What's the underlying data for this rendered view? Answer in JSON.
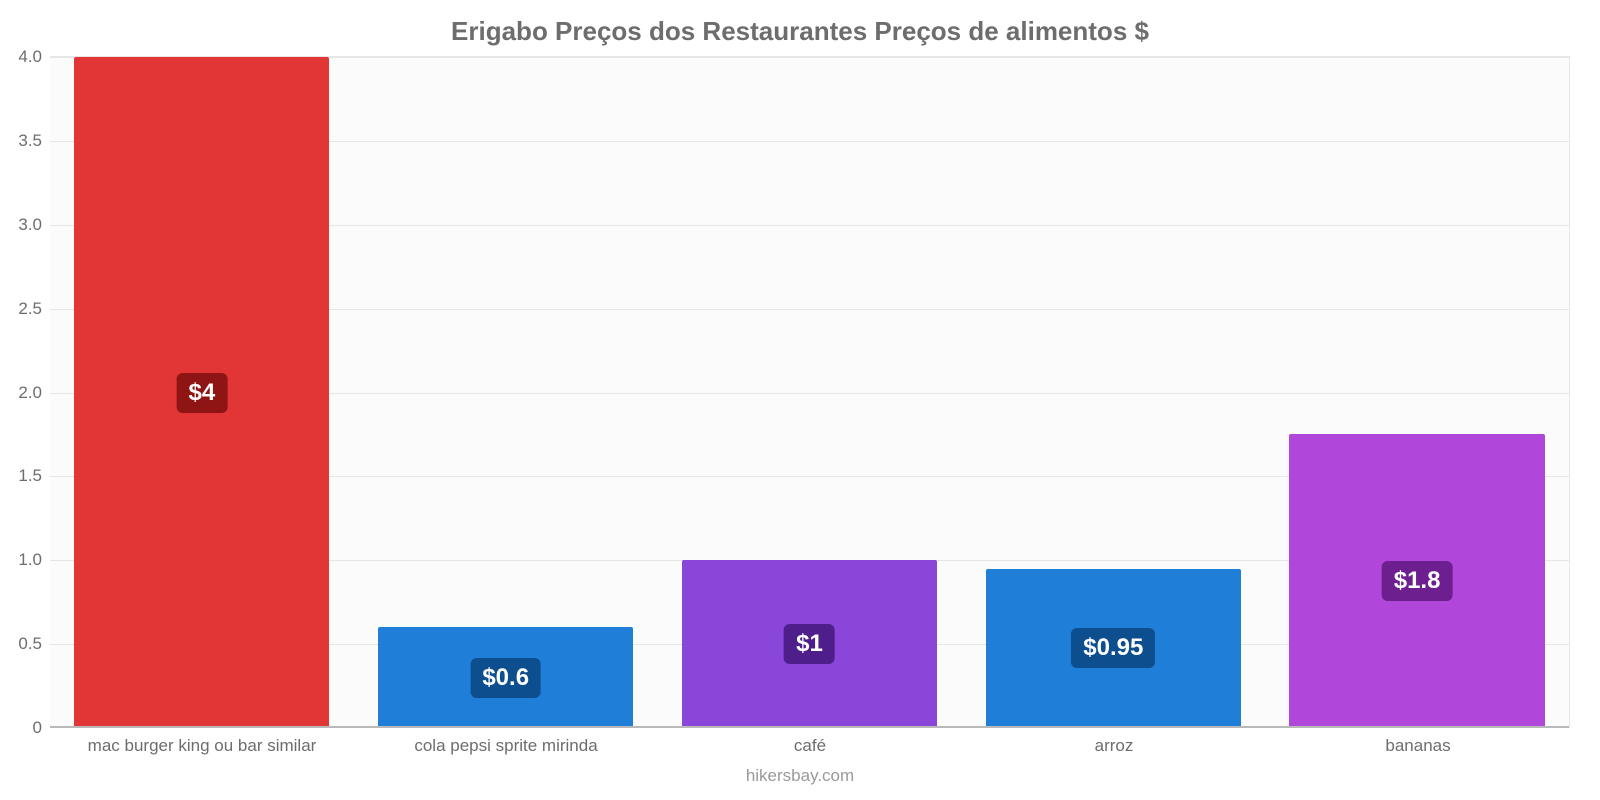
{
  "chart": {
    "type": "bar",
    "title": "Erigabo Preços dos Restaurantes Preços de alimentos $",
    "title_fontsize": 26,
    "title_color": "#6d6d6d",
    "background_color": "#ffffff",
    "plot_background_color": "#fbfbfb",
    "grid_color": "#e6e6e6",
    "baseline_color": "#b9b9b9",
    "label_color": "#6d6d6d",
    "label_fontsize": 17,
    "source_label": "hikersbay.com",
    "source_color": "#9a9a9a",
    "ylim": [
      0,
      4.0
    ],
    "ytick_step": 0.5,
    "yticks": [
      "0",
      "0.5",
      "1.0",
      "1.5",
      "2.0",
      "2.5",
      "3.0",
      "3.5",
      "4.0"
    ],
    "bar_width": 0.84,
    "value_badge_fontsize": 24,
    "categories": [
      "mac burger king ou bar similar",
      "cola pepsi sprite mirinda",
      "café",
      "arroz",
      "bananas"
    ],
    "values": [
      4.0,
      0.6,
      1.0,
      0.95,
      1.75
    ],
    "value_labels": [
      "$4",
      "$0.6",
      "$1",
      "$0.95",
      "$1.8"
    ],
    "bar_colors": [
      "#e23636",
      "#1f7ed8",
      "#8a45d9",
      "#1f7ed8",
      "#b146db"
    ],
    "badge_colors": [
      "#8f1515",
      "#0d4e8f",
      "#4e1f8a",
      "#0d4e8f",
      "#6d1f8f"
    ]
  }
}
